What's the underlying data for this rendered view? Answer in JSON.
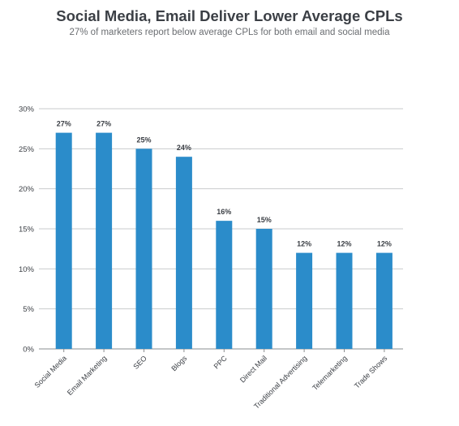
{
  "chart_data": {
    "type": "bar",
    "title": "Social Media, Email Deliver Lower Average CPLs",
    "subtitle": "27% of marketers report below average CPLs for both email and social media",
    "categories": [
      "Social Media",
      "Email Marketing",
      "SEO",
      "Blogs",
      "PPC",
      "Direct Mail",
      "Traditional Advertising",
      "Telemarketing",
      "Trade Shows"
    ],
    "values": [
      27,
      27,
      25,
      24,
      16,
      15,
      12,
      12,
      12
    ],
    "data_labels": [
      "27%",
      "27%",
      "25%",
      "24%",
      "16%",
      "15%",
      "12%",
      "12%",
      "12%"
    ],
    "ylim": [
      0,
      30
    ],
    "yticks": [
      0,
      5,
      10,
      15,
      20,
      25,
      30
    ],
    "ytick_labels": [
      "0%",
      "5%",
      "10%",
      "15%",
      "20%",
      "25%",
      "30%"
    ],
    "grid": true,
    "legend": "none",
    "bar_color": "#2b8cca",
    "xlabel": "",
    "ylabel": ""
  }
}
